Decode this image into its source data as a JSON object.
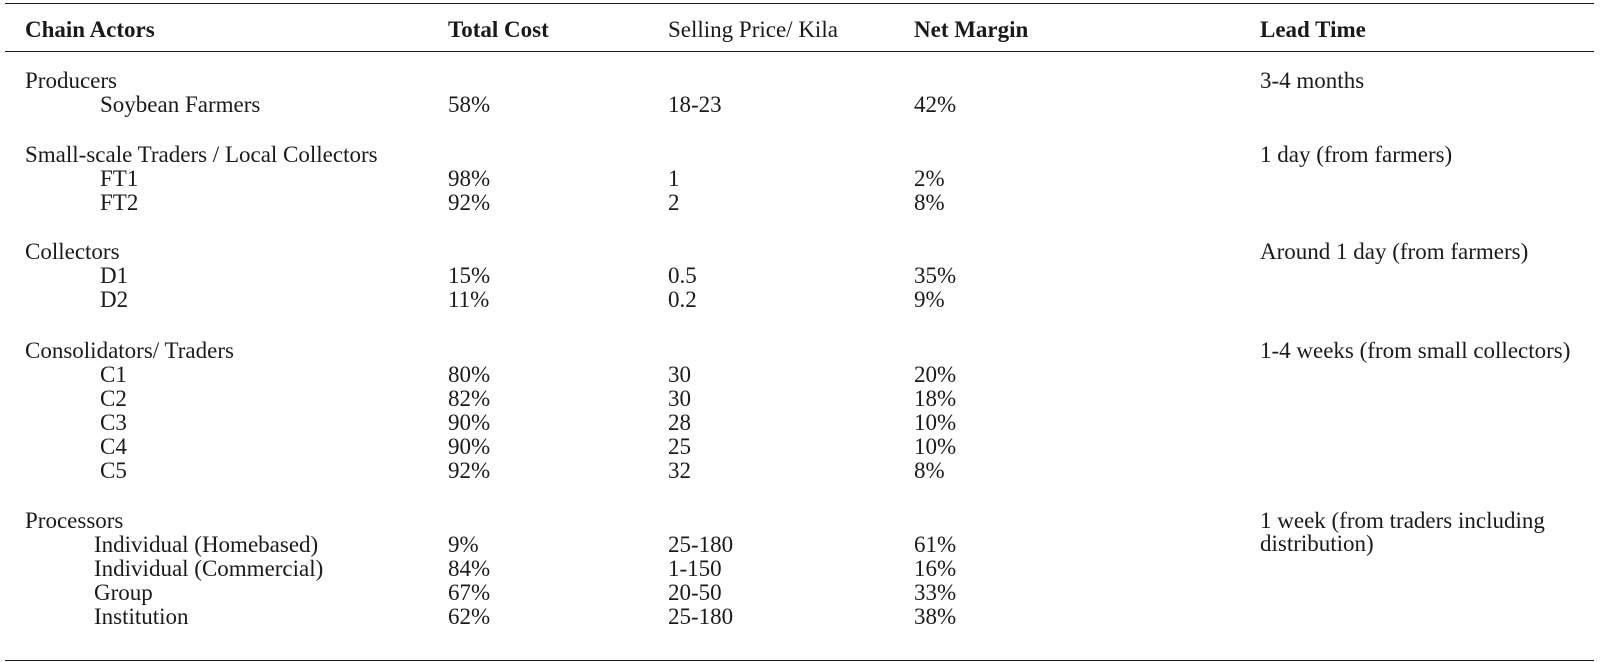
{
  "table": {
    "headers": {
      "chain_actors": "Chain Actors",
      "total_cost": "Total Cost",
      "selling_price": "Selling Price/ Kila",
      "net_margin": "Net Margin",
      "lead_time": "Lead Time"
    },
    "groups": [
      {
        "label": "Producers",
        "lead_time": "3-4 months",
        "rows": [
          {
            "actor": "Soybean Farmers",
            "total_cost": "58%",
            "selling_price": "18-23",
            "net_margin": "42%"
          }
        ]
      },
      {
        "label": "Small-scale Traders / Local Collectors",
        "lead_time": "1 day (from farmers)",
        "rows": [
          {
            "actor": "FT1",
            "total_cost": "98%",
            "selling_price": "1",
            "net_margin": "2%"
          },
          {
            "actor": "FT2",
            "total_cost": "92%",
            "selling_price": "2",
            "net_margin": "8%"
          }
        ]
      },
      {
        "label": "Collectors",
        "lead_time": "Around 1 day (from farmers)",
        "rows": [
          {
            "actor": "D1",
            "total_cost": "15%",
            "selling_price": "0.5",
            "net_margin": "35%"
          },
          {
            "actor": "D2",
            "total_cost": "11%",
            "selling_price": "0.2",
            "net_margin": "9%"
          }
        ]
      },
      {
        "label": "Consolidators/ Traders",
        "lead_time": "1-4 weeks (from small collectors)",
        "rows": [
          {
            "actor": "C1",
            "total_cost": "80%",
            "selling_price": "30",
            "net_margin": "20%"
          },
          {
            "actor": "C2",
            "total_cost": "82%",
            "selling_price": "30",
            "net_margin": "18%"
          },
          {
            "actor": "C3",
            "total_cost": "90%",
            "selling_price": "28",
            "net_margin": "10%"
          },
          {
            "actor": "C4",
            "total_cost": "90%",
            "selling_price": "25",
            "net_margin": "10%"
          },
          {
            "actor": "C5",
            "total_cost": "92%",
            "selling_price": "32",
            "net_margin": "8%"
          }
        ]
      },
      {
        "label": "Processors",
        "lead_time": "1 week (from traders including distribution)",
        "rows": [
          {
            "actor": "Individual (Homebased)",
            "total_cost": "9%",
            "selling_price": "25-180",
            "net_margin": "61%"
          },
          {
            "actor": "Individual (Commercial)",
            "total_cost": "84%",
            "selling_price": "1-150",
            "net_margin": "16%"
          },
          {
            "actor": "Group",
            "total_cost": "67%",
            "selling_price": "20-50",
            "net_margin": "33%"
          },
          {
            "actor": "Institution",
            "total_cost": "62%",
            "selling_price": "25-180",
            "net_margin": "38%"
          }
        ]
      }
    ]
  }
}
